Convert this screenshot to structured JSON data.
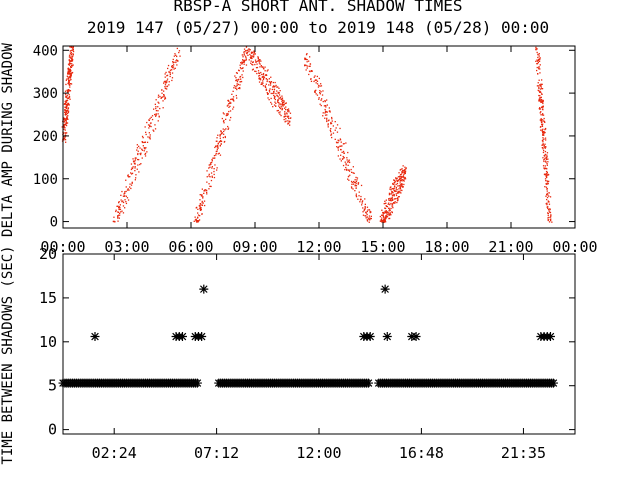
{
  "title_line1": "RBSP-A SHORT ANT. SHADOW TIMES",
  "title_line2": "2019 147 (05/27) 00:00 to 2019 148 (05/28) 00:00",
  "colors": {
    "scatter": "#e8280e",
    "text": "#000000",
    "axes": "#000000"
  },
  "chart_data": [
    {
      "type": "scatter",
      "ylabel": "DELTA AMP DURING SHADOW",
      "xlim": [
        0,
        24
      ],
      "ylim": [
        -15,
        410
      ],
      "xticks": [
        "00:00",
        "03:00",
        "06:00",
        "09:00",
        "12:00",
        "15:00",
        "18:00",
        "21:00",
        "00:00"
      ],
      "yticks": [
        0,
        100,
        200,
        300,
        400
      ],
      "grid": false,
      "point_color": "#e8280e",
      "bands": [
        {
          "x": [
            0.0,
            0.4
          ],
          "y": [
            200,
            400
          ]
        },
        {
          "x": [
            2.4,
            5.4
          ],
          "y": [
            0,
            400
          ]
        },
        {
          "x": [
            6.2,
            8.6
          ],
          "y": [
            0,
            400
          ]
        },
        {
          "x": [
            8.6,
            10.6
          ],
          "y": [
            400,
            240
          ]
        },
        {
          "x": [
            11.2,
            14.4
          ],
          "y": [
            400,
            0
          ]
        },
        {
          "x": [
            14.9,
            16.0
          ],
          "y": [
            0,
            120
          ]
        },
        {
          "x": [
            22.2,
            22.8
          ],
          "y": [
            400,
            0
          ]
        }
      ]
    },
    {
      "type": "scatter",
      "ylabel": "TIME BETWEEN SHADOWS (SEC)",
      "xlim": [
        0,
        24
      ],
      "ylim": [
        -0.5,
        20
      ],
      "xticks": [
        "02:24",
        "07:12",
        "12:00",
        "16:48",
        "21:35"
      ],
      "xtick_values": [
        2.4,
        7.2,
        12.0,
        16.8,
        21.583
      ],
      "yticks": [
        0,
        5,
        10,
        15,
        20
      ],
      "grid": false,
      "marker": "*",
      "baseline": {
        "y": 5.3,
        "x_ranges": [
          [
            0,
            6.3
          ],
          [
            7.3,
            14.4
          ],
          [
            14.8,
            23.0
          ]
        ]
      },
      "points": [
        {
          "x": 1.5,
          "y": 10.6
        },
        {
          "x": 5.3,
          "y": 10.6
        },
        {
          "x": 5.45,
          "y": 10.6
        },
        {
          "x": 5.6,
          "y": 10.6
        },
        {
          "x": 6.2,
          "y": 10.6
        },
        {
          "x": 6.35,
          "y": 10.6
        },
        {
          "x": 6.5,
          "y": 10.6
        },
        {
          "x": 6.6,
          "y": 16.0
        },
        {
          "x": 14.1,
          "y": 10.6
        },
        {
          "x": 14.25,
          "y": 10.6
        },
        {
          "x": 14.4,
          "y": 10.6
        },
        {
          "x": 15.1,
          "y": 16.0
        },
        {
          "x": 15.2,
          "y": 10.6
        },
        {
          "x": 16.35,
          "y": 10.6
        },
        {
          "x": 16.55,
          "y": 10.6
        },
        {
          "x": 22.4,
          "y": 10.6
        },
        {
          "x": 22.55,
          "y": 10.6
        },
        {
          "x": 22.7,
          "y": 10.6
        },
        {
          "x": 22.85,
          "y": 10.6
        }
      ]
    }
  ]
}
